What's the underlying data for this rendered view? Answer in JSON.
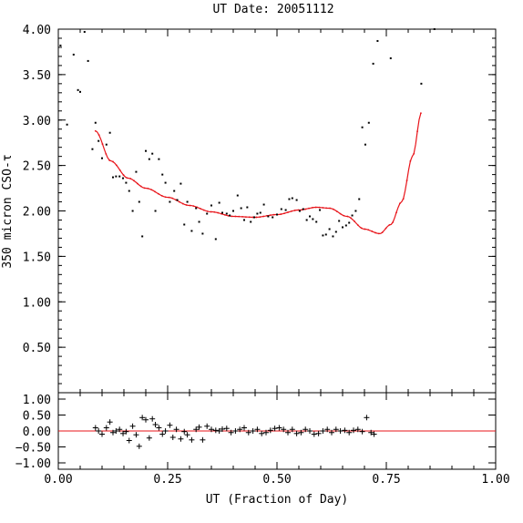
{
  "chart_data": [
    {
      "type": "scatter",
      "title": "UT Date: 20051112",
      "ylabel": "350 micron CSO-τ",
      "xlabel": "",
      "xlim": [
        0,
        1
      ],
      "ylim": [
        0,
        4
      ],
      "x_ticks": [
        "0.00",
        "0.25",
        "0.50",
        "0.75",
        "1.00"
      ],
      "y_ticks": [
        "0.50",
        "1.00",
        "1.50",
        "2.00",
        "2.50",
        "3.00",
        "3.50",
        "4.00"
      ],
      "y_tick_values": [
        0.5,
        1.0,
        1.5,
        2.0,
        2.5,
        3.0,
        3.5,
        4.0
      ],
      "fit_color": "#e8141a",
      "points": [
        [
          0.005,
          3.82
        ],
        [
          0.02,
          2.95
        ],
        [
          0.035,
          3.72
        ],
        [
          0.045,
          3.33
        ],
        [
          0.05,
          3.31
        ],
        [
          0.06,
          3.97
        ],
        [
          0.068,
          3.65
        ],
        [
          0.078,
          2.68
        ],
        [
          0.085,
          2.97
        ],
        [
          0.092,
          2.77
        ],
        [
          0.1,
          2.58
        ],
        [
          0.11,
          2.73
        ],
        [
          0.118,
          2.86
        ],
        [
          0.125,
          2.37
        ],
        [
          0.132,
          2.38
        ],
        [
          0.14,
          2.38
        ],
        [
          0.148,
          2.36
        ],
        [
          0.155,
          2.31
        ],
        [
          0.162,
          2.22
        ],
        [
          0.17,
          2.0
        ],
        [
          0.178,
          2.43
        ],
        [
          0.185,
          2.1
        ],
        [
          0.192,
          1.72
        ],
        [
          0.2,
          2.66
        ],
        [
          0.208,
          2.57
        ],
        [
          0.215,
          2.63
        ],
        [
          0.222,
          2.0
        ],
        [
          0.23,
          2.57
        ],
        [
          0.238,
          2.4
        ],
        [
          0.245,
          2.31
        ],
        [
          0.255,
          2.1
        ],
        [
          0.265,
          2.22
        ],
        [
          0.272,
          2.12
        ],
        [
          0.28,
          2.3
        ],
        [
          0.288,
          1.85
        ],
        [
          0.295,
          2.1
        ],
        [
          0.305,
          1.78
        ],
        [
          0.315,
          2.03
        ],
        [
          0.322,
          1.88
        ],
        [
          0.33,
          1.75
        ],
        [
          0.34,
          1.97
        ],
        [
          0.35,
          2.06
        ],
        [
          0.36,
          1.69
        ],
        [
          0.368,
          2.09
        ],
        [
          0.375,
          1.98
        ],
        [
          0.385,
          1.97
        ],
        [
          0.392,
          1.95
        ],
        [
          0.4,
          2.0
        ],
        [
          0.41,
          2.17
        ],
        [
          0.418,
          2.03
        ],
        [
          0.425,
          1.9
        ],
        [
          0.432,
          2.04
        ],
        [
          0.44,
          1.88
        ],
        [
          0.448,
          1.93
        ],
        [
          0.455,
          1.97
        ],
        [
          0.462,
          1.98
        ],
        [
          0.47,
          2.07
        ],
        [
          0.48,
          1.94
        ],
        [
          0.49,
          1.93
        ],
        [
          0.5,
          1.96
        ],
        [
          0.51,
          2.02
        ],
        [
          0.52,
          2.01
        ],
        [
          0.528,
          2.13
        ],
        [
          0.535,
          2.14
        ],
        [
          0.545,
          2.12
        ],
        [
          0.552,
          2.0
        ],
        [
          0.56,
          2.02
        ],
        [
          0.568,
          1.9
        ],
        [
          0.575,
          1.94
        ],
        [
          0.582,
          1.91
        ],
        [
          0.59,
          1.88
        ],
        [
          0.598,
          2.01
        ],
        [
          0.605,
          1.73
        ],
        [
          0.612,
          1.74
        ],
        [
          0.62,
          1.8
        ],
        [
          0.628,
          1.72
        ],
        [
          0.635,
          1.77
        ],
        [
          0.642,
          1.89
        ],
        [
          0.65,
          1.82
        ],
        [
          0.658,
          1.84
        ],
        [
          0.665,
          1.87
        ],
        [
          0.672,
          1.95
        ],
        [
          0.68,
          2.0
        ],
        [
          0.688,
          2.13
        ],
        [
          0.695,
          2.92
        ],
        [
          0.702,
          2.73
        ],
        [
          0.71,
          2.97
        ],
        [
          0.72,
          3.62
        ],
        [
          0.73,
          3.87
        ],
        [
          0.76,
          3.68
        ],
        [
          0.83,
          3.4
        ],
        [
          0.86,
          4.0
        ]
      ],
      "residuals": [
        [
          0.085,
          0.1
        ],
        [
          0.092,
          0.0
        ],
        [
          0.1,
          -0.1
        ],
        [
          0.11,
          0.1
        ],
        [
          0.118,
          0.28
        ],
        [
          0.125,
          -0.05
        ],
        [
          0.132,
          0.0
        ],
        [
          0.14,
          0.05
        ],
        [
          0.148,
          -0.08
        ],
        [
          0.155,
          -0.02
        ],
        [
          0.162,
          -0.3
        ],
        [
          0.17,
          0.15
        ],
        [
          0.178,
          -0.12
        ],
        [
          0.185,
          -0.48
        ],
        [
          0.192,
          0.42
        ],
        [
          0.2,
          0.35
        ],
        [
          0.208,
          -0.22
        ],
        [
          0.215,
          0.38
        ],
        [
          0.222,
          0.2
        ],
        [
          0.23,
          0.1
        ],
        [
          0.238,
          -0.1
        ],
        [
          0.245,
          0.0
        ],
        [
          0.255,
          0.18
        ],
        [
          0.262,
          -0.2
        ],
        [
          0.27,
          0.05
        ],
        [
          0.28,
          -0.25
        ],
        [
          0.288,
          -0.02
        ],
        [
          0.295,
          -0.12
        ],
        [
          0.305,
          -0.28
        ],
        [
          0.315,
          0.05
        ],
        [
          0.322,
          0.12
        ],
        [
          0.33,
          -0.28
        ],
        [
          0.34,
          0.15
        ],
        [
          0.35,
          0.05
        ],
        [
          0.36,
          0.02
        ],
        [
          0.368,
          0.0
        ],
        [
          0.375,
          0.06
        ],
        [
          0.385,
          0.08
        ],
        [
          0.395,
          -0.05
        ],
        [
          0.405,
          0.0
        ],
        [
          0.415,
          0.05
        ],
        [
          0.425,
          0.1
        ],
        [
          0.435,
          -0.05
        ],
        [
          0.445,
          0.0
        ],
        [
          0.455,
          0.05
        ],
        [
          0.465,
          -0.08
        ],
        [
          0.475,
          -0.05
        ],
        [
          0.485,
          0.02
        ],
        [
          0.495,
          0.08
        ],
        [
          0.505,
          0.1
        ],
        [
          0.515,
          0.05
        ],
        [
          0.525,
          -0.05
        ],
        [
          0.535,
          0.05
        ],
        [
          0.545,
          -0.08
        ],
        [
          0.555,
          -0.05
        ],
        [
          0.565,
          0.05
        ],
        [
          0.575,
          0.0
        ],
        [
          0.585,
          -0.1
        ],
        [
          0.595,
          -0.08
        ],
        [
          0.605,
          0.0
        ],
        [
          0.615,
          0.05
        ],
        [
          0.625,
          -0.05
        ],
        [
          0.635,
          0.05
        ],
        [
          0.645,
          0.0
        ],
        [
          0.655,
          0.02
        ],
        [
          0.665,
          -0.05
        ],
        [
          0.675,
          0.02
        ],
        [
          0.685,
          0.05
        ],
        [
          0.695,
          -0.02
        ],
        [
          0.705,
          0.42
        ],
        [
          0.715,
          -0.05
        ],
        [
          0.722,
          -0.1
        ]
      ]
    }
  ],
  "residual_axis": {
    "ylim": [
      -1.2,
      1.2
    ],
    "y_ticks": [
      "1.00",
      "0.50",
      "0.00",
      "−0.50",
      "−1.00"
    ],
    "y_tick_values": [
      1.0,
      0.5,
      0.0,
      -0.5,
      -1.0
    ],
    "xlabel": "UT (Fraction of Day)",
    "x_ticks": [
      "0.00",
      "0.25",
      "0.50",
      "0.75",
      "1.00"
    ]
  }
}
